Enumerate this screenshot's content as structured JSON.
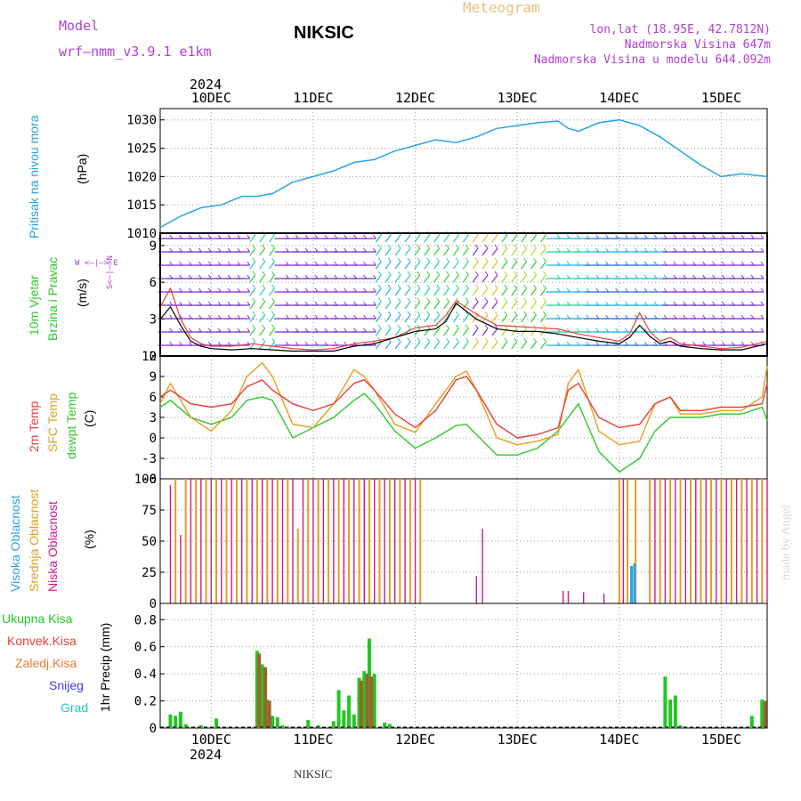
{
  "header": {
    "model_label": "Model",
    "model_name": "wrf–nmm_v3.9.1  e1km",
    "station": "NIKSIC",
    "meteogram": "Meteogram",
    "lonlat": "lon,lat (18.95E, 42.7812N)",
    "elevation": "Nadmorska Visina 647m",
    "model_elevation": "Nadmorska Visina u modelu 644.092m",
    "year": "2024",
    "footer_station": "NIKSIC",
    "watermark": "made by Angel"
  },
  "time_axis": {
    "labels": [
      "10DEC",
      "11DEC",
      "12DEC",
      "13DEC",
      "14DEC",
      "15DEC"
    ],
    "tick_positions": [
      1,
      2,
      3,
      4,
      5,
      6
    ],
    "range": [
      0.5,
      6.45
    ],
    "bottom_year": "2024"
  },
  "colors": {
    "pressure": "#29a3e0",
    "temp_2m": "#e8403a",
    "temp_sfc": "#e0a020",
    "dewpoint": "#2ec82e",
    "cloud_high": "#29a3e0",
    "cloud_mid": "#e0a020",
    "cloud_low": "#d0188c",
    "precip_total": "#22c822",
    "precip_conv": "#e8403a",
    "precip_frozen": "#f07830",
    "precip_snow": "#4040e0",
    "precip_hail": "#20c8c8",
    "wind_magenta": "#a040c0"
  },
  "panels": {
    "pressure": {
      "label": "Pritisak na nivou mora",
      "unit": "(hPa)"
    },
    "wind": {
      "label1": "10m Vjetar",
      "label2": "Brzina i Pravac",
      "unit": "(m/s)",
      "compass": "W  <–|–>  E",
      "ns": "S<–|–>N"
    },
    "temp": {
      "label1": "2m Temp",
      "label2": "SFC Temp",
      "label3": "dewpt Temp",
      "unit": "(C)"
    },
    "cloud": {
      "label1": "Visoka Oblacnost",
      "label2": "Srednja Oblacnost",
      "label3": "Niska Oblacnost",
      "unit": "(%)"
    },
    "precip": {
      "label1": "Ukupna Kisa",
      "label2": "Konvek.Kisa",
      "label3": "Zaledj.Kisa",
      "label4": "Snijeg",
      "label5": "Grad",
      "unit": "1hr Precip (mm)"
    }
  },
  "chart_data": [
    {
      "type": "line",
      "id": "pressure",
      "ylim": [
        1010,
        1032
      ],
      "yticks": [
        1010,
        1015,
        1020,
        1025,
        1030
      ],
      "grid": true,
      "x": [
        0.5,
        0.7,
        0.9,
        1.1,
        1.3,
        1.45,
        1.6,
        1.8,
        2.0,
        2.2,
        2.4,
        2.6,
        2.8,
        3.0,
        3.2,
        3.4,
        3.6,
        3.8,
        4.0,
        4.2,
        4.4,
        4.5,
        4.6,
        4.8,
        5.0,
        5.2,
        5.4,
        5.6,
        5.8,
        6.0,
        6.2,
        6.45
      ],
      "series": [
        {
          "values": [
            1011,
            1013,
            1014.5,
            1015,
            1016.5,
            1016.5,
            1017,
            1019,
            1020,
            1021,
            1022.5,
            1023,
            1024.5,
            1025.5,
            1026.5,
            1026,
            1027,
            1028.5,
            1029,
            1029.5,
            1029.8,
            1028.5,
            1028,
            1029.5,
            1030,
            1029,
            1027,
            1024.5,
            1022,
            1020,
            1020.5,
            1020
          ]
        }
      ]
    },
    {
      "type": "line",
      "id": "wind_speed",
      "ylim": [
        0,
        10
      ],
      "yticks": [
        0,
        3,
        6,
        9
      ],
      "grid": true,
      "x": [
        0.5,
        0.6,
        0.7,
        0.8,
        0.9,
        1.0,
        1.2,
        1.4,
        1.6,
        1.8,
        2.0,
        2.2,
        2.4,
        2.6,
        2.8,
        3.0,
        3.2,
        3.3,
        3.4,
        3.6,
        3.8,
        4.0,
        4.2,
        4.4,
        4.6,
        4.8,
        5.0,
        5.1,
        5.2,
        5.3,
        5.4,
        5.5,
        5.6,
        5.8,
        6.0,
        6.2,
        6.45
      ],
      "series": [
        {
          "values": [
            4,
            5.5,
            3,
            1.5,
            1,
            0.8,
            0.8,
            1,
            0.8,
            0.6,
            0.5,
            0.6,
            1,
            1.2,
            1.5,
            2.3,
            2.5,
            3.3,
            4.5,
            3.4,
            2.5,
            2.4,
            2.3,
            2.2,
            1.8,
            1.5,
            1.2,
            1.8,
            3.5,
            2.0,
            1.2,
            1.5,
            1.0,
            0.8,
            0.6,
            0.7,
            1.2
          ]
        },
        {
          "values": [
            3,
            4,
            2.5,
            1.2,
            0.8,
            0.6,
            0.5,
            0.6,
            0.5,
            0.4,
            0.4,
            0.4,
            0.8,
            1.0,
            1.5,
            2.0,
            2.2,
            2.8,
            4.3,
            3.0,
            2.2,
            2.0,
            2.0,
            1.8,
            1.5,
            1.2,
            1.0,
            1.5,
            2.5,
            1.6,
            1.0,
            1.2,
            0.8,
            0.6,
            0.5,
            0.5,
            1.0
          ]
        }
      ]
    },
    {
      "type": "line",
      "id": "temperature",
      "ylim": [
        -6,
        12
      ],
      "yticks": [
        -6,
        -3,
        0,
        3,
        6,
        9,
        12
      ],
      "grid": true,
      "x": [
        0.5,
        0.6,
        0.8,
        1.0,
        1.2,
        1.35,
        1.5,
        1.6,
        1.8,
        2.0,
        2.2,
        2.4,
        2.5,
        2.6,
        2.8,
        3.0,
        3.2,
        3.4,
        3.5,
        3.6,
        3.8,
        4.0,
        4.2,
        4.4,
        4.5,
        4.6,
        4.8,
        5.0,
        5.2,
        5.35,
        5.5,
        5.6,
        5.8,
        6.0,
        6.2,
        6.4,
        6.45
      ],
      "series": [
        {
          "name": "2m Temp",
          "values": [
            6,
            7,
            5,
            4.5,
            5,
            7.5,
            8.5,
            7,
            5,
            4,
            5,
            8,
            8.5,
            7,
            3.5,
            1.5,
            4,
            8.5,
            9,
            7,
            2,
            0,
            0.5,
            1.5,
            7,
            8,
            3,
            1.5,
            2,
            5,
            6,
            4,
            4,
            4.5,
            4.5,
            5,
            8
          ]
        },
        {
          "name": "SFC Temp",
          "values": [
            5,
            8,
            3,
            1,
            4,
            9,
            11,
            9,
            2,
            1.5,
            5,
            10,
            9,
            7,
            2,
            0.8,
            5,
            9,
            9.8,
            7,
            0,
            -1,
            -0.5,
            0.5,
            8,
            10,
            1,
            -1,
            -0.5,
            5,
            6,
            3.5,
            3.5,
            4,
            4,
            6,
            10.5
          ]
        },
        {
          "name": "dewpt Temp",
          "values": [
            4.5,
            5.5,
            3,
            2,
            3,
            5.5,
            6,
            5.5,
            0,
            1.5,
            3,
            5.5,
            6.5,
            5,
            1,
            -1.5,
            0,
            1.8,
            2,
            0.5,
            -2.5,
            -2.5,
            -1.5,
            1,
            3,
            5,
            -2,
            -5,
            -3,
            1,
            3,
            3,
            3,
            3.5,
            3.5,
            4.5,
            2.5
          ]
        }
      ]
    },
    {
      "type": "bar",
      "id": "cloud_cover",
      "ylim": [
        0,
        100
      ],
      "yticks": [
        0,
        25,
        50,
        75,
        100
      ],
      "grid": true,
      "series": [
        {
          "name": "Srednja Oblacnost",
          "x": [
            0.65,
            0.75,
            0.85,
            0.95,
            1.05,
            1.15,
            1.25,
            1.35,
            1.45,
            1.55,
            1.65,
            1.75,
            1.85,
            1.95,
            2.05,
            2.15,
            2.25,
            2.35,
            2.45,
            2.55,
            2.65,
            2.75,
            2.85,
            2.95,
            3.05,
            5.0,
            5.08,
            5.16,
            5.3,
            5.4,
            5.5,
            5.6,
            5.7,
            5.8,
            5.9,
            6.0,
            6.1,
            6.2,
            6.3,
            6.4
          ],
          "values": [
            100,
            100,
            100,
            100,
            100,
            100,
            100,
            100,
            100,
            100,
            100,
            100,
            60,
            100,
            100,
            100,
            100,
            100,
            100,
            100,
            100,
            100,
            100,
            100,
            100,
            100,
            100,
            100,
            100,
            100,
            100,
            100,
            100,
            100,
            100,
            100,
            100,
            100,
            100,
            100
          ]
        },
        {
          "name": "Niska Oblacnost",
          "x": [
            0.6,
            0.7,
            0.8,
            0.9,
            1.0,
            1.1,
            1.2,
            1.3,
            1.4,
            1.5,
            1.6,
            1.7,
            1.8,
            1.9,
            2.0,
            2.1,
            2.2,
            2.3,
            2.4,
            2.5,
            2.6,
            2.7,
            2.8,
            2.9,
            3.0,
            3.6,
            3.66,
            4.45,
            4.5,
            4.65,
            4.85,
            5.04,
            5.35,
            5.45,
            5.55,
            5.65,
            5.75,
            5.85,
            5.95,
            6.05,
            6.15,
            6.25,
            6.35,
            6.45
          ],
          "values": [
            95,
            55,
            100,
            100,
            100,
            100,
            100,
            100,
            100,
            100,
            100,
            100,
            100,
            100,
            100,
            100,
            100,
            100,
            100,
            100,
            100,
            100,
            100,
            100,
            100,
            22,
            60,
            10,
            10,
            9,
            8,
            100,
            100,
            100,
            100,
            100,
            100,
            100,
            100,
            100,
            100,
            100,
            100,
            100
          ]
        },
        {
          "name": "Visoka Oblacnost",
          "x": [
            5.12,
            5.15
          ],
          "values": [
            30,
            32
          ]
        }
      ]
    },
    {
      "type": "bar",
      "id": "precipitation",
      "ylim": [
        0,
        0.92
      ],
      "yticks": [
        0,
        0.2,
        0.4,
        0.6,
        0.8
      ],
      "grid": true,
      "series": [
        {
          "name": "Ukupna Kisa",
          "x": [
            0.6,
            0.65,
            0.7,
            0.75,
            0.9,
            1.05,
            1.45,
            1.5,
            1.55,
            1.6,
            1.65,
            1.7,
            1.75,
            1.95,
            2.05,
            2.2,
            2.25,
            2.3,
            2.35,
            2.4,
            2.45,
            2.5,
            2.55,
            2.6,
            2.7,
            2.75,
            5.45,
            5.5,
            5.55,
            5.6,
            6.3,
            6.4
          ],
          "values": [
            0.1,
            0.09,
            0.12,
            0.03,
            0.02,
            0.07,
            0.57,
            0.47,
            0.21,
            0.09,
            0.08,
            0.02,
            0.01,
            0.06,
            0.02,
            0.05,
            0.28,
            0.13,
            0.24,
            0.1,
            0.37,
            0.42,
            0.66,
            0.4,
            0.04,
            0.03,
            0.38,
            0.21,
            0.24,
            0.02,
            0.09,
            0.21
          ]
        },
        {
          "name": "Konvek.Kisa",
          "x": [
            1.47,
            1.53,
            1.57,
            2.47,
            2.53,
            2.57,
            6.43
          ],
          "values": [
            0.55,
            0.45,
            0.2,
            0.35,
            0.4,
            0.38,
            0.2
          ]
        }
      ]
    }
  ]
}
